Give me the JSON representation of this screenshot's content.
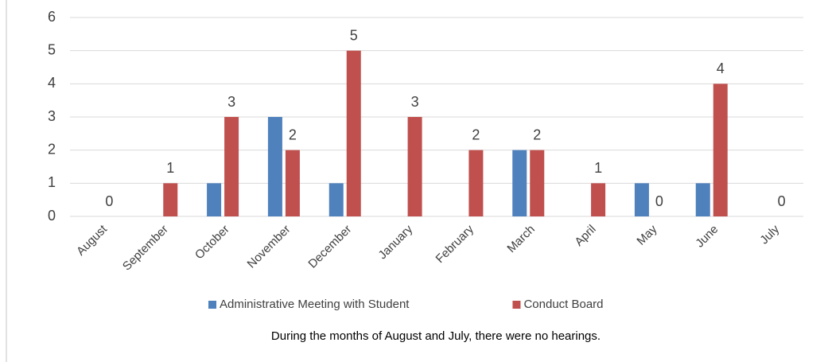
{
  "chart_data": {
    "type": "bar",
    "categories": [
      "August",
      "September",
      "October",
      "November",
      "December",
      "January",
      "February",
      "March",
      "April",
      "May",
      "June",
      "July"
    ],
    "series": [
      {
        "name": "Administrative Meeting with Student",
        "color": "#4f81bd",
        "values": [
          0,
          0,
          1,
          3,
          1,
          0,
          0,
          2,
          0,
          1,
          1,
          0
        ],
        "show_labels": false
      },
      {
        "name": "Conduct Board",
        "color": "#c0504d",
        "values": [
          0,
          1,
          3,
          2,
          5,
          3,
          2,
          2,
          1,
          0,
          4,
          0
        ],
        "show_labels": true
      }
    ],
    "ylim": [
      0,
      6
    ],
    "yticks": [
      0,
      1,
      2,
      3,
      4,
      5,
      6
    ],
    "grid": true,
    "legend": "bottom",
    "annotation": "During the months of August and July, there were no hearings."
  }
}
